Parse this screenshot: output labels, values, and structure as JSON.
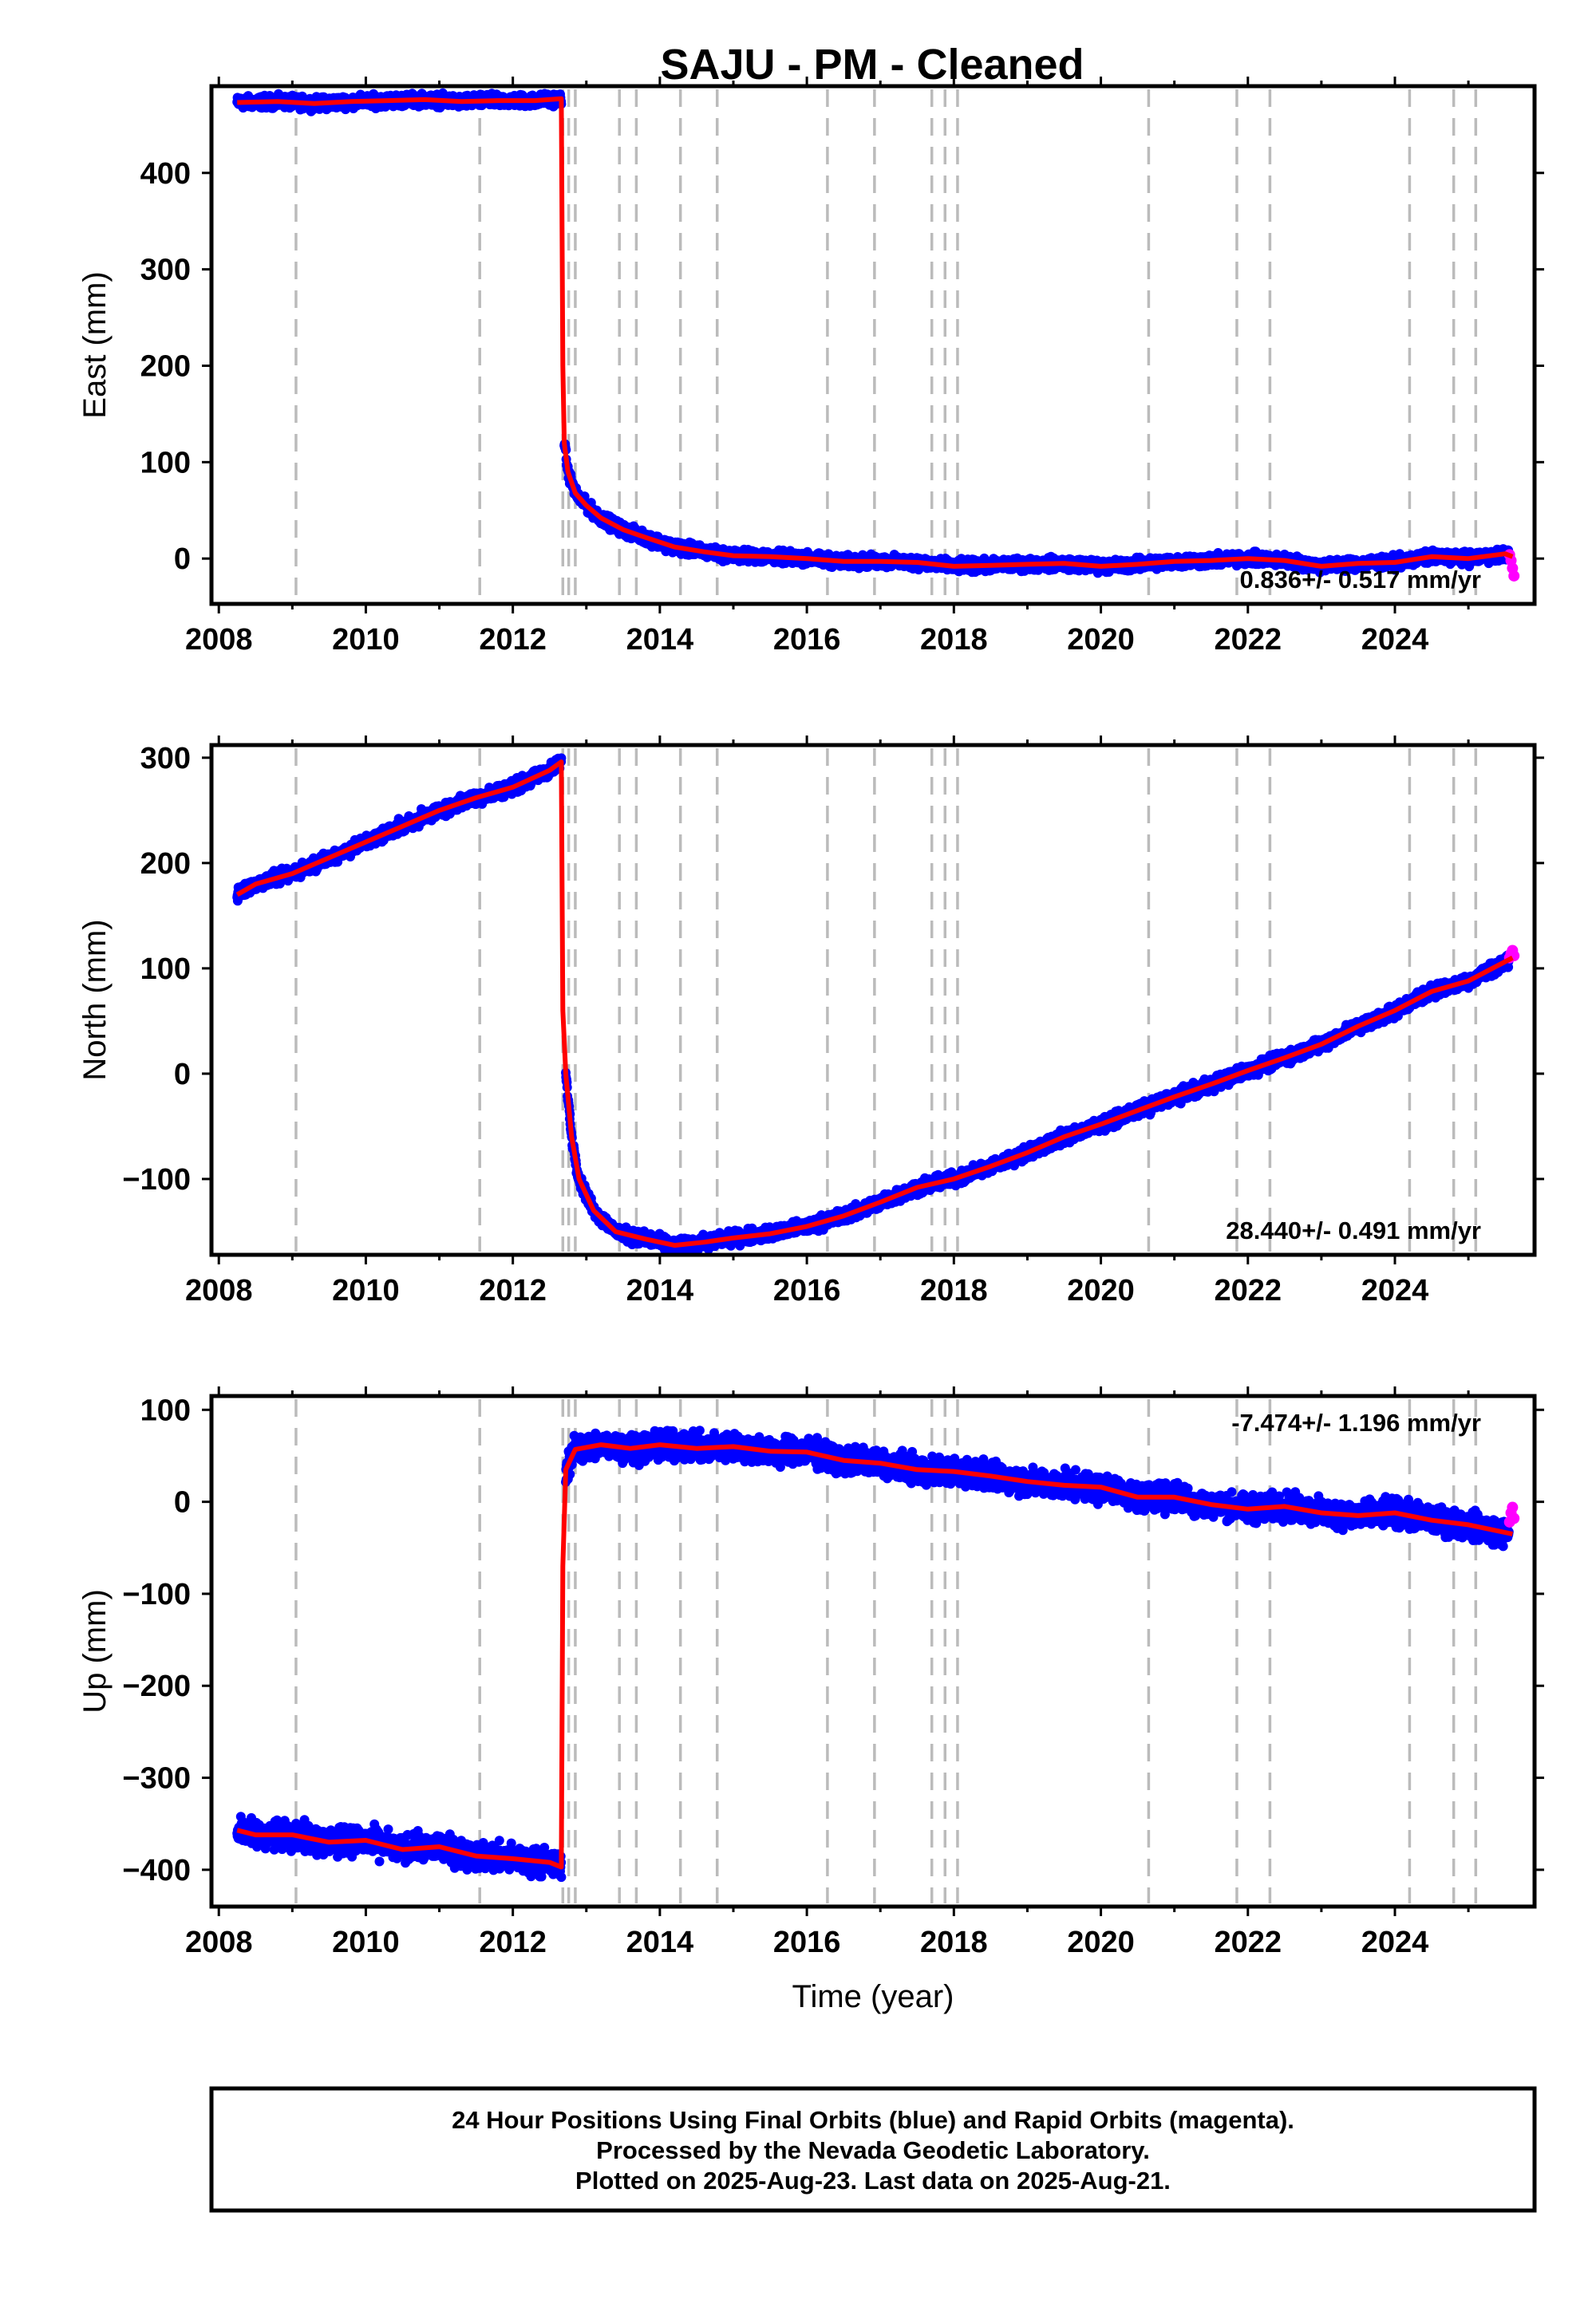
{
  "title": "SAJU  - PM - Cleaned",
  "colors": {
    "final_orbits": "#0000ff",
    "rapid_orbits": "#ff00ff",
    "model": "#ff0000",
    "event_lines": "#bbbbbb",
    "frame": "#000000"
  },
  "footer": {
    "line1": "24 Hour Positions Using Final Orbits (blue) and Rapid Orbits (magenta).",
    "line2": "Processed by the Nevada Geodetic Laboratory.",
    "line3": "Plotted on 2025-Aug-23. Last data on 2025-Aug-21."
  },
  "chart_data": [
    {
      "type": "scatter",
      "name": "east",
      "ylabel": "East (mm)",
      "xlabel": "",
      "xlim": [
        2007.9,
        2025.9
      ],
      "ylim": [
        -47,
        490
      ],
      "xticks": [
        2008,
        2010,
        2012,
        2014,
        2016,
        2018,
        2020,
        2022,
        2024
      ],
      "yticks": [
        0,
        100,
        200,
        300,
        400
      ],
      "grid": false,
      "rate_text": "0.836+/- 0.517 mm/yr",
      "rate_position": "bottom-right",
      "event_lines": [
        2009.05,
        2011.55,
        2012.68,
        2012.76,
        2012.85,
        2013.45,
        2013.68,
        2014.28,
        2014.78,
        2016.28,
        2016.92,
        2017.7,
        2017.88,
        2018.05,
        2020.65,
        2021.85,
        2022.3,
        2024.2,
        2024.8,
        2025.1
      ],
      "model_series": {
        "x": [
          2008.25,
          2008.8,
          2009.3,
          2009.8,
          2010.3,
          2010.8,
          2011.3,
          2011.8,
          2012.3,
          2012.66,
          2012.68,
          2012.7,
          2012.75,
          2012.85,
          2013.0,
          2013.2,
          2013.5,
          2013.8,
          2014.2,
          2014.6,
          2015.0,
          2015.5,
          2016.0,
          2016.5,
          2017.0,
          2017.5,
          2018.0,
          2018.5,
          2019.0,
          2019.5,
          2020.0,
          2020.5,
          2021.0,
          2021.5,
          2022.0,
          2022.5,
          2023.0,
          2023.5,
          2024.0,
          2024.5,
          2025.0,
          2025.5,
          2025.6
        ],
        "y": [
          473,
          474,
          472,
          474,
          475,
          476,
          474,
          475,
          475,
          477,
          200,
          120,
          90,
          68,
          55,
          42,
          30,
          22,
          12,
          7,
          3,
          2,
          0,
          -3,
          -3,
          -4,
          -8,
          -7,
          -6,
          -5,
          -8,
          -6,
          -3,
          -2,
          0,
          -2,
          -8,
          -5,
          -4,
          2,
          0,
          5,
          2
        ]
      },
      "final_envelope": {
        "x": [
          2008.25,
          2008.8,
          2009.3,
          2009.8,
          2010.3,
          2010.8,
          2011.3,
          2011.8,
          2012.3,
          2012.66,
          2012.7,
          2012.75,
          2012.85,
          2013.0,
          2013.2,
          2013.5,
          2013.8,
          2014.2,
          2014.6,
          2015.0,
          2015.5,
          2016.0,
          2016.5,
          2017.0,
          2017.5,
          2018.0,
          2018.5,
          2019.0,
          2019.5,
          2020.0,
          2020.5,
          2021.0,
          2021.5,
          2022.0,
          2022.5,
          2023.0,
          2023.5,
          2024.0,
          2024.5,
          2025.0,
          2025.55
        ],
        "y": [
          473,
          474,
          472,
          474,
          475,
          476,
          474,
          475,
          475,
          477,
          120,
          90,
          68,
          55,
          42,
          30,
          22,
          12,
          7,
          3,
          2,
          0,
          -3,
          -3,
          -4,
          -8,
          -7,
          -6,
          -5,
          -8,
          -6,
          -3,
          -2,
          0,
          -2,
          -8,
          -5,
          -4,
          2,
          0,
          5
        ],
        "spread": 6
      },
      "rapid_points": {
        "x": [
          2025.56,
          2025.58,
          2025.6,
          2025.62
        ],
        "y": [
          4,
          -2,
          -10,
          -18
        ]
      }
    },
    {
      "type": "scatter",
      "name": "north",
      "ylabel": "North (mm)",
      "xlabel": "",
      "xlim": [
        2007.9,
        2025.9
      ],
      "ylim": [
        -172,
        312
      ],
      "xticks": [
        2008,
        2010,
        2012,
        2014,
        2016,
        2018,
        2020,
        2022,
        2024
      ],
      "yticks": [
        -100,
        0,
        100,
        200,
        300
      ],
      "grid": false,
      "rate_text": "28.440+/- 0.491 mm/yr",
      "rate_position": "bottom-right",
      "event_lines": [
        2009.05,
        2011.55,
        2012.68,
        2012.76,
        2012.85,
        2013.45,
        2013.68,
        2014.28,
        2014.78,
        2016.28,
        2016.92,
        2017.7,
        2017.88,
        2018.05,
        2020.65,
        2021.85,
        2022.3,
        2024.2,
        2024.8,
        2025.1
      ],
      "model_series": {
        "x": [
          2008.25,
          2008.5,
          2009.0,
          2009.5,
          2010.0,
          2010.5,
          2011.0,
          2011.5,
          2012.0,
          2012.5,
          2012.66,
          2012.68,
          2012.72,
          2012.8,
          2012.9,
          2013.1,
          2013.4,
          2013.8,
          2014.2,
          2014.6,
          2015.0,
          2015.5,
          2016.0,
          2016.5,
          2017.0,
          2017.5,
          2018.0,
          2018.5,
          2019.0,
          2019.5,
          2020.0,
          2020.5,
          2021.0,
          2021.5,
          2022.0,
          2022.5,
          2023.0,
          2023.5,
          2024.0,
          2024.5,
          2025.0,
          2025.6
        ],
        "y": [
          170,
          180,
          190,
          205,
          220,
          235,
          250,
          262,
          272,
          288,
          296,
          60,
          0,
          -60,
          -100,
          -130,
          -150,
          -157,
          -163,
          -160,
          -156,
          -152,
          -145,
          -135,
          -122,
          -108,
          -100,
          -88,
          -75,
          -60,
          -48,
          -35,
          -22,
          -10,
          3,
          15,
          28,
          45,
          60,
          78,
          88,
          110
        ]
      },
      "final_envelope": {
        "x": [
          2008.25,
          2008.5,
          2009.0,
          2009.5,
          2010.0,
          2010.5,
          2011.0,
          2011.5,
          2012.0,
          2012.5,
          2012.66,
          2012.72,
          2012.8,
          2012.9,
          2013.1,
          2013.4,
          2013.8,
          2014.2,
          2014.6,
          2015.0,
          2015.5,
          2016.0,
          2016.5,
          2017.0,
          2017.5,
          2018.0,
          2018.5,
          2019.0,
          2019.5,
          2020.0,
          2020.5,
          2021.0,
          2021.5,
          2022.0,
          2022.5,
          2023.0,
          2023.5,
          2024.0,
          2024.5,
          2025.0,
          2025.55
        ],
        "y": [
          170,
          180,
          190,
          205,
          220,
          235,
          250,
          262,
          272,
          288,
          296,
          0,
          -60,
          -100,
          -130,
          -150,
          -157,
          -163,
          -160,
          -156,
          -152,
          -145,
          -135,
          -122,
          -108,
          -100,
          -88,
          -75,
          -60,
          -48,
          -35,
          -22,
          -10,
          3,
          15,
          28,
          45,
          60,
          78,
          88,
          108
        ],
        "spread": 6
      },
      "rapid_points": {
        "x": [
          2025.56,
          2025.58,
          2025.6,
          2025.62
        ],
        "y": [
          110,
          114,
          117,
          112
        ]
      }
    },
    {
      "type": "scatter",
      "name": "up",
      "ylabel": "Up (mm)",
      "xlabel": "Time (year)",
      "xlim": [
        2007.9,
        2025.9
      ],
      "ylim": [
        -440,
        115
      ],
      "xticks": [
        2008,
        2010,
        2012,
        2014,
        2016,
        2018,
        2020,
        2022,
        2024
      ],
      "yticks": [
        -400,
        -300,
        -200,
        -100,
        0,
        100
      ],
      "grid": false,
      "rate_text": "-7.474+/- 1.196 mm/yr",
      "rate_position": "top-right",
      "event_lines": [
        2009.05,
        2011.55,
        2012.68,
        2012.76,
        2012.85,
        2013.45,
        2013.68,
        2014.28,
        2014.78,
        2016.28,
        2016.92,
        2017.7,
        2017.88,
        2018.05,
        2020.65,
        2021.85,
        2022.3,
        2024.2,
        2024.8,
        2025.1
      ],
      "model_series": {
        "x": [
          2008.25,
          2008.5,
          2009.0,
          2009.5,
          2010.0,
          2010.5,
          2011.0,
          2011.5,
          2012.0,
          2012.5,
          2012.66,
          2012.68,
          2012.72,
          2012.85,
          2013.2,
          2013.6,
          2014.0,
          2014.5,
          2015.0,
          2015.5,
          2016.0,
          2016.5,
          2017.0,
          2017.5,
          2018.0,
          2018.5,
          2019.0,
          2019.5,
          2020.0,
          2020.5,
          2021.0,
          2021.5,
          2022.0,
          2022.5,
          2023.0,
          2023.5,
          2024.0,
          2024.5,
          2025.0,
          2025.6
        ],
        "y": [
          -357,
          -362,
          -362,
          -370,
          -368,
          -378,
          -375,
          -385,
          -388,
          -392,
          -397,
          -70,
          35,
          57,
          62,
          58,
          62,
          58,
          60,
          55,
          54,
          45,
          42,
          35,
          33,
          28,
          22,
          18,
          16,
          5,
          5,
          -3,
          -8,
          -5,
          -12,
          -15,
          -12,
          -20,
          -25,
          -35
        ]
      },
      "final_envelope": {
        "x": [
          2008.25,
          2008.5,
          2009.0,
          2009.5,
          2010.0,
          2010.5,
          2011.0,
          2011.5,
          2012.0,
          2012.5,
          2012.66,
          2012.72,
          2012.85,
          2013.2,
          2013.6,
          2014.0,
          2014.5,
          2015.0,
          2015.5,
          2016.0,
          2016.5,
          2017.0,
          2017.5,
          2018.0,
          2018.5,
          2019.0,
          2019.5,
          2020.0,
          2020.5,
          2021.0,
          2021.5,
          2022.0,
          2022.5,
          2023.0,
          2023.5,
          2024.0,
          2024.5,
          2025.0,
          2025.55
        ],
        "y": [
          -357,
          -362,
          -362,
          -370,
          -368,
          -378,
          -375,
          -385,
          -388,
          -392,
          -397,
          35,
          57,
          62,
          58,
          62,
          58,
          60,
          55,
          54,
          45,
          42,
          35,
          33,
          28,
          22,
          18,
          16,
          5,
          5,
          -3,
          -8,
          -5,
          -12,
          -15,
          -12,
          -20,
          -25,
          -35
        ],
        "spread": 14
      },
      "rapid_points": {
        "x": [
          2025.56,
          2025.58,
          2025.6,
          2025.62
        ],
        "y": [
          -22,
          -12,
          -6,
          -18
        ]
      }
    }
  ]
}
